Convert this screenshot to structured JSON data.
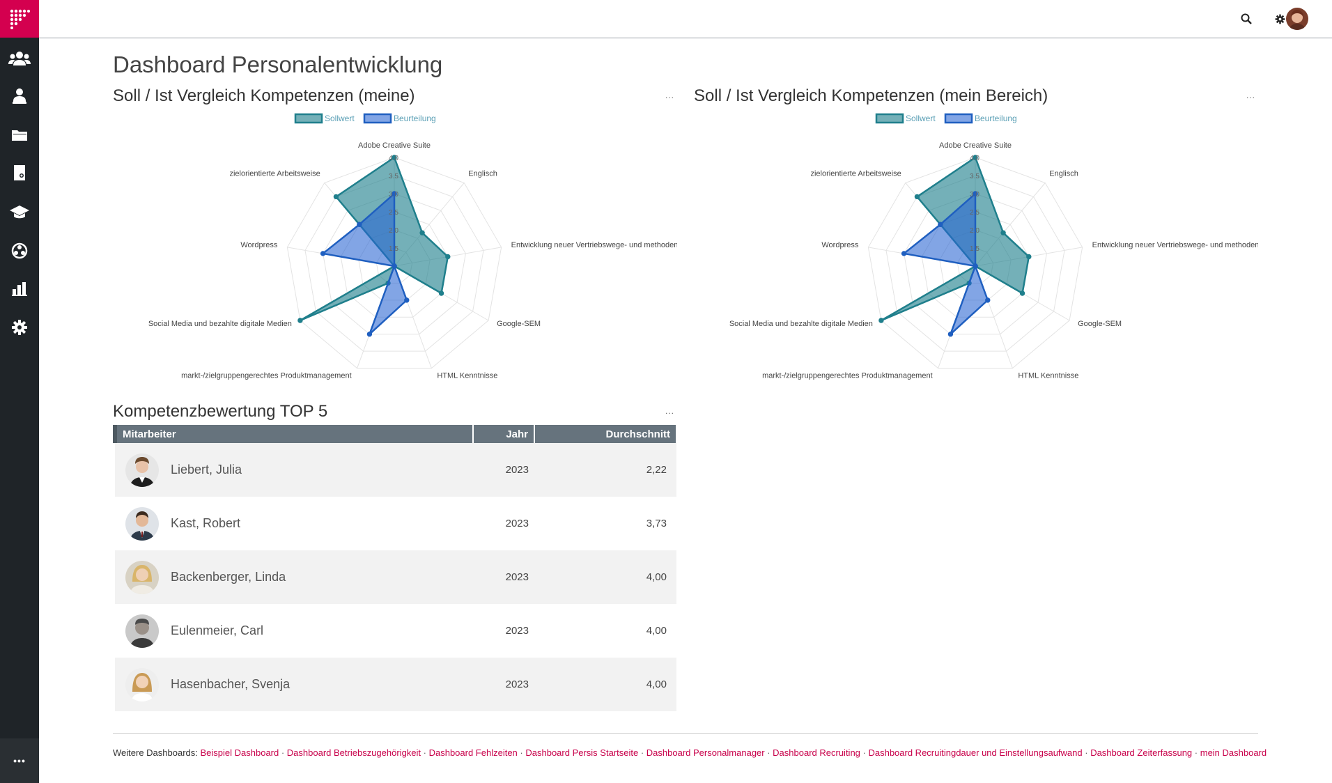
{
  "app": {
    "page_title": "Dashboard Personalentwicklung"
  },
  "sidebar": {
    "items": [
      {
        "icon": "team-icon"
      },
      {
        "icon": "person-org-icon"
      },
      {
        "icon": "folder-icon"
      },
      {
        "icon": "document-icon"
      },
      {
        "icon": "graduation-cap-icon"
      },
      {
        "icon": "network-icon"
      },
      {
        "icon": "bar-chart-icon"
      },
      {
        "icon": "gear-icon"
      }
    ],
    "more_label": "•••"
  },
  "topbar": {
    "icons": [
      "search-icon",
      "gear-icon"
    ]
  },
  "colors": {
    "brand": "#d4004f",
    "sollwert": "#1f7f8c",
    "beurteilung": "#1f5fc0",
    "table_header": "#66737d",
    "link": "#c8004a"
  },
  "charts": {
    "menu_label": "...",
    "left_title": "Soll / Ist Vergleich Kompetenzen (meine)",
    "right_title": "Soll / Ist Vergleich Kompetenzen (mein Bereich)"
  },
  "chart_data": [
    {
      "type": "radar",
      "title": "Soll / Ist Vergleich Kompetenzen (meine)",
      "categories": [
        "Adobe Creative Suite",
        "Englisch",
        "Entwicklung neuer Vertriebswege- und methoden",
        "Google-SEM",
        "HTML Kenntnisse",
        "markt-/zielgruppengerechtes Produktmanagement",
        "Social Media und bezahlte digitale Medien",
        "Wordpress",
        "zielorientierte Arbeitsweise"
      ],
      "r_ticks": [
        "1.5",
        "2.0",
        "2.5",
        "3.0",
        "3.5",
        "4.0"
      ],
      "rlim": [
        1,
        4
      ],
      "legend_placement": "top",
      "series": [
        {
          "name": "Sollwert",
          "values": [
            4.0,
            2.2,
            2.5,
            2.5,
            1.0,
            1.5,
            4.0,
            1.0,
            3.5
          ]
        },
        {
          "name": "Beurteilung",
          "values": [
            3.0,
            1.0,
            1.0,
            1.0,
            2.0,
            3.0,
            1.0,
            3.0,
            2.5
          ]
        }
      ]
    },
    {
      "type": "radar",
      "title": "Soll / Ist Vergleich Kompetenzen (mein Bereich)",
      "categories": [
        "Adobe Creative Suite",
        "Englisch",
        "Entwicklung neuer Vertriebswege- und methoden",
        "Google-SEM",
        "HTML Kenntnisse",
        "markt-/zielgruppengerechtes Produktmanagement",
        "Social Media und bezahlte digitale Medien",
        "Wordpress",
        "zielorientierte Arbeitsweise"
      ],
      "r_ticks": [
        "1.5",
        "2.0",
        "2.5",
        "3.0",
        "3.5",
        "4.0"
      ],
      "rlim": [
        1,
        4
      ],
      "legend_placement": "top",
      "series": [
        {
          "name": "Sollwert",
          "values": [
            4.0,
            2.2,
            2.5,
            2.5,
            1.0,
            1.5,
            4.0,
            1.0,
            3.5
          ]
        },
        {
          "name": "Beurteilung",
          "values": [
            3.0,
            1.0,
            1.0,
            1.0,
            2.0,
            3.0,
            1.0,
            3.0,
            2.5
          ]
        }
      ]
    }
  ],
  "top5": {
    "title": "Kompetenzbewertung TOP 5",
    "menu_label": "...",
    "columns": [
      "Mitarbeiter",
      "Jahr",
      "Durchschnitt"
    ],
    "rows": [
      {
        "name": "Liebert, Julia",
        "year": "2023",
        "avg": "2,22"
      },
      {
        "name": "Kast, Robert",
        "year": "2023",
        "avg": "3,73"
      },
      {
        "name": "Backenberger, Linda",
        "year": "2023",
        "avg": "4,00"
      },
      {
        "name": "Eulenmeier, Carl",
        "year": "2023",
        "avg": "4,00"
      },
      {
        "name": "Hasenbacher, Svenja",
        "year": "2023",
        "avg": "4,00"
      }
    ]
  },
  "footer": {
    "prefix": "Weitere Dashboards:",
    "links": [
      "Beispiel Dashboard",
      "Dashboard Betriebszugehörigkeit",
      "Dashboard Fehlzeiten",
      "Dashboard Persis Startseite",
      "Dashboard Personalmanager",
      "Dashboard Recruiting",
      "Dashboard Recruitingdauer und Einstellungsaufwand",
      "Dashboard Zeiterfassung",
      "mein Dashboard"
    ]
  }
}
